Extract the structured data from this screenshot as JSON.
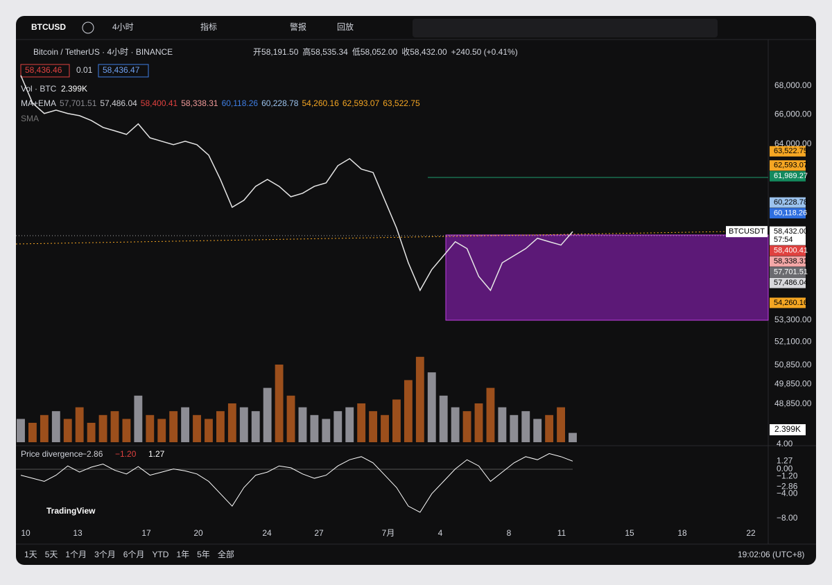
{
  "toolbar": {
    "symbol": "BTCUSD",
    "interval": "4小时",
    "indicators": "指标",
    "alert": "警报",
    "replay": "回放"
  },
  "legend": {
    "title": "Bitcoin / TetherUS · 4小时 · BINANCE",
    "ohlc": [
      {
        "label": "开",
        "value": "58,191.50"
      },
      {
        "label": "高",
        "value": "58,535.34"
      },
      {
        "label": "低",
        "value": "58,052.00"
      },
      {
        "label": "收",
        "value": "58,432.00"
      }
    ],
    "change": "+240.50 (+0.41%)",
    "bid": "58,436.46",
    "spread": "0.01",
    "ask": "58,436.47",
    "vol_name": "Vol · BTC",
    "vol_value": "2.399K",
    "ma_name": "MA+EMA",
    "ma_values": [
      {
        "text": "57,701.51",
        "color": "#8a8a90"
      },
      {
        "text": "57,486.04",
        "color": "#cfcfd4"
      },
      {
        "text": "58,400.41",
        "color": "#e0413f"
      },
      {
        "text": "58,338.31",
        "color": "#f19a9a"
      },
      {
        "text": "60,118.26",
        "color": "#3f7fe6"
      },
      {
        "text": "60,228.78",
        "color": "#9cc3ee"
      },
      {
        "text": "54,260.16",
        "color": "#f5a623"
      },
      {
        "text": "62,593.07",
        "color": "#f5a623"
      },
      {
        "text": "63,522.75",
        "color": "#f5a623"
      }
    ],
    "sma": "SMA"
  },
  "chart_data": {
    "type": "line",
    "log": true,
    "ylim": [
      48000,
      71200
    ],
    "color": "#e6e6e6",
    "yticks": [
      {
        "value": 68000,
        "label": "68,000.00"
      },
      {
        "value": 66000,
        "label": "66,000.00"
      },
      {
        "value": 64000,
        "label": "64,000.00"
      },
      {
        "value": 53300,
        "label": "53,300.00"
      },
      {
        "value": 52100,
        "label": "52,100.00"
      },
      {
        "value": 50850,
        "label": "50,850.00"
      },
      {
        "value": 49850,
        "label": "49,850.00"
      },
      {
        "value": 48850,
        "label": "48,850.00"
      }
    ],
    "values": [
      68740,
      66790,
      66070,
      66300,
      66070,
      65920,
      65590,
      65120,
      64890,
      64650,
      65360,
      64420,
      64190,
      63960,
      64190,
      63960,
      63270,
      61690,
      59930,
      60370,
      61250,
      61690,
      61250,
      60590,
      60810,
      61250,
      61470,
      62580,
      63040,
      62360,
      62140,
      60370,
      58650,
      56570,
      54970,
      56170,
      56990,
      57820,
      57410,
      55770,
      54970,
      56570,
      56990,
      57410,
      58030,
      57820,
      57620,
      58432
    ],
    "tags": [
      {
        "value": 63522.75,
        "label": "63,522.75",
        "color": "#f5a623"
      },
      {
        "value": 62593.07,
        "label": "62,593.07",
        "color": "#f5a623"
      },
      {
        "value": 61989.27,
        "label": "61,989.27",
        "color": "#138a5e"
      },
      {
        "value": 60228.78,
        "label": "60,228.78",
        "color": "#9cc3ee"
      },
      {
        "value": 60118.26,
        "label": "60,118.26",
        "color": "#2f6fe0"
      },
      {
        "value": 58432,
        "label": "58,432.00",
        "color": "#ffffff",
        "name": "BTCUSDT",
        "countdown": "57:54"
      },
      {
        "value": 58400.41,
        "label": "58,400.41",
        "color": "#e0413f"
      },
      {
        "value": 58338.31,
        "label": "58,338.31",
        "color": "#f4a7a7"
      },
      {
        "value": 57701.51,
        "label": "57,701.51",
        "color": "#6b6b70"
      },
      {
        "value": 57486.04,
        "label": "57,486.04",
        "color": "#d8d8dc"
      },
      {
        "value": 54260.16,
        "label": "54,260.16",
        "color": "#f5a623"
      }
    ],
    "volume": {
      "ylim": [
        0,
        25
      ],
      "values": [
        6,
        5,
        7,
        8,
        6,
        9,
        5,
        7,
        8,
        6,
        12,
        7,
        6,
        8,
        9,
        7,
        6,
        8,
        10,
        9,
        8,
        14,
        20,
        12,
        9,
        7,
        6,
        8,
        9,
        10,
        8,
        7,
        11,
        16,
        22,
        18,
        12,
        9,
        8,
        10,
        14,
        9,
        7,
        8,
        6,
        7,
        9,
        2.399
      ],
      "label": "2.399K"
    },
    "divergence": {
      "name": "Price divergence",
      "readings": [
        {
          "text": "−2.86",
          "color": "#cfcfd4"
        },
        {
          "text": "−1.20",
          "color": "#e0413f"
        },
        {
          "text": "1.27",
          "color": "#ffffff"
        }
      ],
      "ylim": [
        -8,
        4
      ],
      "yticks": [
        {
          "value": 4,
          "label": "4.00"
        },
        {
          "value": 1.27,
          "label": "1.27"
        },
        {
          "value": 0,
          "label": "0.00"
        },
        {
          "value": -1.2,
          "label": "−1.20"
        },
        {
          "value": -2.86,
          "label": "−2.86"
        },
        {
          "value": -4,
          "label": "−4.00"
        },
        {
          "value": -8,
          "label": "−8.00"
        }
      ],
      "values": [
        -1,
        -1.5,
        -2,
        -1,
        0.5,
        -0.5,
        0.3,
        0.8,
        -0.2,
        -0.8,
        0.4,
        -1,
        -0.5,
        0,
        -0.3,
        -0.8,
        -2,
        -4,
        -6,
        -3,
        -1,
        -0.5,
        0.5,
        0.2,
        -0.8,
        -1.5,
        -1,
        0.5,
        1.5,
        2,
        1,
        -1,
        -3,
        -6,
        -7,
        -4,
        -2,
        0,
        1.5,
        0.5,
        -2,
        -0.5,
        1,
        2,
        1.5,
        2.5,
        2,
        1.27
      ]
    },
    "x_labels": [
      "10",
      "13",
      "17",
      "20",
      "24",
      "27",
      "7月",
      "4",
      "8",
      "11",
      "15",
      "18",
      "22"
    ]
  },
  "bottom": {
    "ranges": [
      "1天",
      "5天",
      "1个月",
      "3个月",
      "6个月",
      "YTD",
      "1年",
      "5年",
      "全部"
    ],
    "clock": "19:02:06 (UTC+8)",
    "brand": "TradingView"
  }
}
